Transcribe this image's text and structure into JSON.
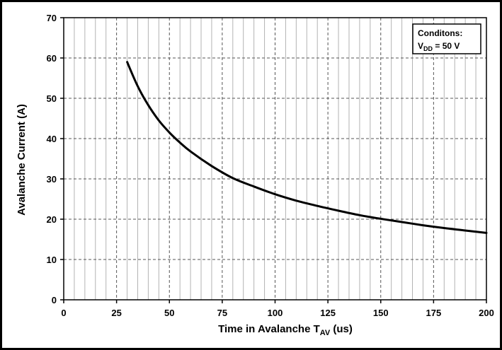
{
  "chart_data": {
    "type": "line",
    "xlabel": {
      "main": "Time in Avalanche T",
      "sub": "AV",
      "tail": " (us)"
    },
    "ylabel": "Avalanche Current (A)",
    "xlim": [
      0,
      200
    ],
    "ylim": [
      0,
      70
    ],
    "x_ticks": [
      "0",
      "25",
      "50",
      "75",
      "100",
      "125",
      "150",
      "175",
      "200"
    ],
    "y_ticks": [
      "0",
      "10",
      "20",
      "30",
      "40",
      "50",
      "60",
      "70"
    ],
    "grid": true,
    "series": [
      {
        "color": "#000000",
        "x": [
          30,
          35,
          40,
          45,
          50,
          55,
          60,
          70,
          80,
          90,
          100,
          110,
          120,
          130,
          140,
          150,
          160,
          170,
          180,
          190,
          200
        ],
        "y": [
          59,
          53,
          48.3,
          44.5,
          41.5,
          39,
          36.8,
          33.2,
          30.2,
          28.1,
          26.2,
          24.6,
          23.3,
          22.1,
          21,
          20.1,
          19.3,
          18.5,
          17.8,
          17.2,
          16.6
        ]
      }
    ],
    "annotation": {
      "title": "Conditons:",
      "line_prefix": "V",
      "line_sub": "DD",
      "line_suffix": " = 50 V",
      "placement": "top-right"
    }
  }
}
